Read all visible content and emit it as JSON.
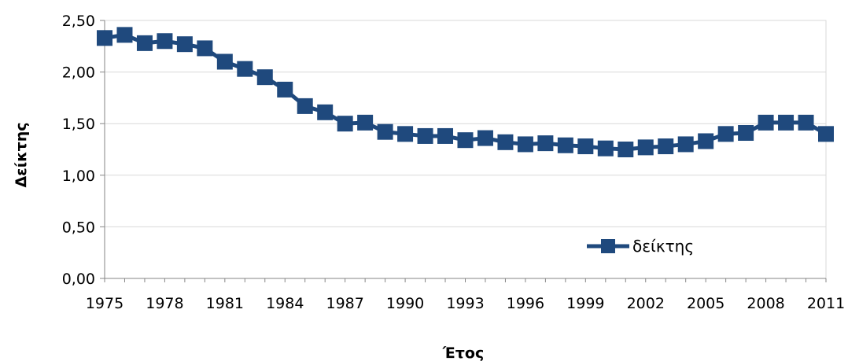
{
  "chart_data": {
    "type": "line",
    "title": "",
    "xlabel": "Έτος",
    "ylabel": "Δείκτης",
    "xlim": [
      1975,
      2011
    ],
    "ylim": [
      0,
      2.5
    ],
    "x_ticks": [
      "1975",
      "1978",
      "1981",
      "1984",
      "1987",
      "1990",
      "1993",
      "1996",
      "1999",
      "2002",
      "2005",
      "2008",
      "2011"
    ],
    "y_ticks": [
      "0,00",
      "0,50",
      "1,00",
      "1,50",
      "2,00",
      "2,50"
    ],
    "grid": true,
    "legend_position": "lower-right (inside plot)",
    "series": [
      {
        "name": "δείκτης",
        "color": "#1f497d",
        "marker": "square",
        "x": [
          1975,
          1976,
          1977,
          1978,
          1979,
          1980,
          1981,
          1982,
          1983,
          1984,
          1985,
          1986,
          1987,
          1988,
          1989,
          1990,
          1991,
          1992,
          1993,
          1994,
          1995,
          1996,
          1997,
          1998,
          1999,
          2000,
          2001,
          2002,
          2003,
          2004,
          2005,
          2006,
          2007,
          2008,
          2009,
          2010,
          2011
        ],
        "values": [
          2.33,
          2.36,
          2.28,
          2.3,
          2.27,
          2.23,
          2.1,
          2.03,
          1.95,
          1.83,
          1.67,
          1.61,
          1.5,
          1.51,
          1.42,
          1.4,
          1.38,
          1.38,
          1.34,
          1.36,
          1.32,
          1.3,
          1.31,
          1.29,
          1.28,
          1.26,
          1.25,
          1.27,
          1.28,
          1.3,
          1.33,
          1.4,
          1.41,
          1.51,
          1.51,
          1.51,
          1.4
        ]
      }
    ]
  }
}
